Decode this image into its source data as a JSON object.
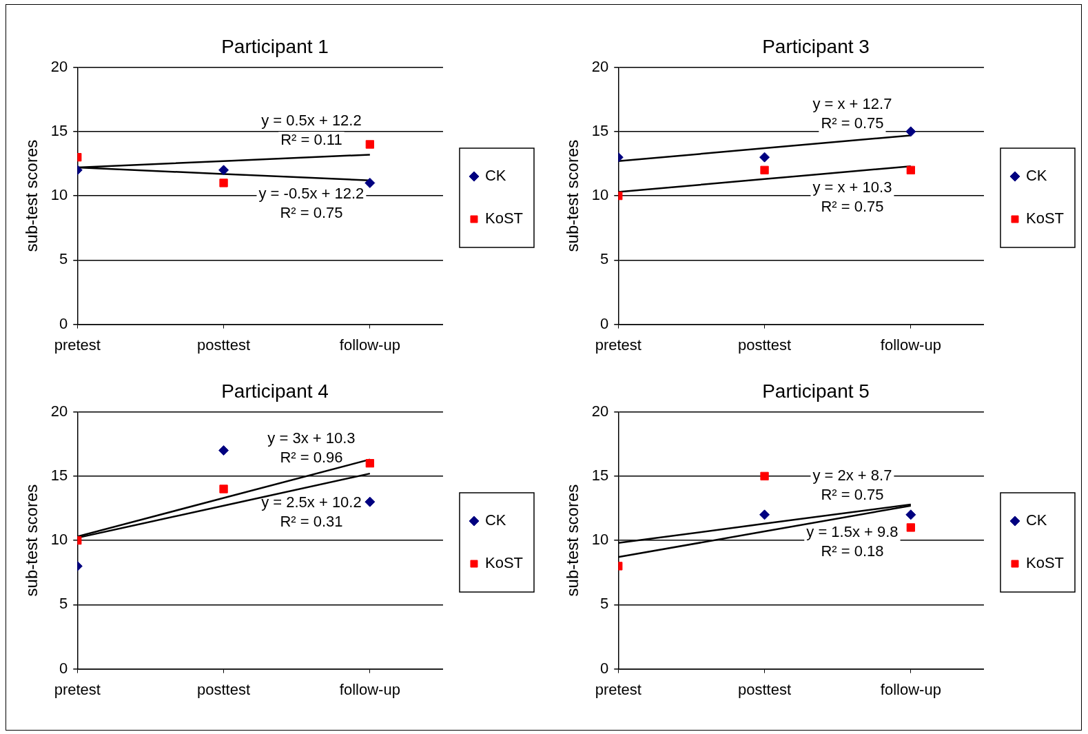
{
  "chart_data": [
    {
      "type": "scatter",
      "title": "Participant 1",
      "ylabel": "sub-test scores",
      "categories": [
        "pretest",
        "posttest",
        "follow-up"
      ],
      "ylim": [
        0,
        20
      ],
      "yticks": [
        0,
        5,
        10,
        15,
        20
      ],
      "grid": "y",
      "legend": "right",
      "series": [
        {
          "name": "CK",
          "marker": "diamond",
          "color": "#000080",
          "values": [
            12,
            12,
            11
          ]
        },
        {
          "name": "KoST",
          "marker": "square",
          "color": "#ff0000",
          "values": [
            13,
            11,
            14
          ]
        },
        {
          "type": "line",
          "marker": "none",
          "color": "#000000",
          "values": [
            12.2,
            12.7,
            13.2
          ]
        },
        {
          "type": "line",
          "marker": "none",
          "color": "#000000",
          "values": [
            12.2,
            11.7,
            11.2
          ]
        }
      ],
      "annotations": [
        "y = 0.5x + 12.2",
        "R² = 0.11",
        "y = -0.5x + 12.2",
        "R² = 0.75"
      ]
    },
    {
      "type": "scatter",
      "title": "Participant 3",
      "ylabel": "sub-test scores",
      "categories": [
        "pretest",
        "posttest",
        "follow-up"
      ],
      "ylim": [
        0,
        20
      ],
      "yticks": [
        0,
        5,
        10,
        15,
        20
      ],
      "grid": "y",
      "legend": "right",
      "series": [
        {
          "name": "CK",
          "marker": "diamond",
          "color": "#000080",
          "values": [
            13,
            13,
            15
          ]
        },
        {
          "name": "KoST",
          "marker": "square",
          "color": "#ff0000",
          "values": [
            10,
            12,
            12
          ]
        },
        {
          "type": "line",
          "marker": "none",
          "color": "#000000",
          "values": [
            12.7,
            13.7,
            14.7
          ]
        },
        {
          "type": "line",
          "marker": "none",
          "color": "#000000",
          "values": [
            10.3,
            11.3,
            12.3
          ]
        }
      ],
      "annotations": [
        "y = x + 12.7",
        "R² = 0.75",
        "y = x + 10.3",
        "R² = 0.75"
      ]
    },
    {
      "type": "scatter",
      "title": "Participant 4",
      "ylabel": "sub-test scores",
      "categories": [
        "pretest",
        "posttest",
        "follow-up"
      ],
      "ylim": [
        0,
        20
      ],
      "yticks": [
        0,
        5,
        10,
        15,
        20
      ],
      "grid": "y",
      "legend": "right",
      "series": [
        {
          "name": "CK",
          "marker": "diamond",
          "color": "#000080",
          "values": [
            8,
            17,
            13
          ]
        },
        {
          "name": "KoST",
          "marker": "square",
          "color": "#ff0000",
          "values": [
            10,
            14,
            16
          ]
        },
        {
          "type": "line",
          "marker": "none",
          "color": "#000000",
          "values": [
            10.3,
            13.3,
            16.3
          ]
        },
        {
          "type": "line",
          "marker": "none",
          "color": "#000000",
          "values": [
            10.2,
            12.7,
            15.2
          ]
        }
      ],
      "annotations": [
        "y = 3x + 10.3",
        "R² = 0.96",
        "y = 2.5x + 10.2",
        "R² = 0.31"
      ]
    },
    {
      "type": "scatter",
      "title": "Participant 5",
      "ylabel": "sub-test scores",
      "categories": [
        "pretest",
        "posttest",
        "follow-up"
      ],
      "ylim": [
        0,
        20
      ],
      "yticks": [
        0,
        5,
        10,
        15,
        20
      ],
      "grid": "y",
      "legend": "right",
      "series": [
        {
          "name": "CK",
          "marker": "diamond",
          "color": "#000080",
          "values": [
            null,
            12,
            12
          ]
        },
        {
          "name": "KoST",
          "marker": "square",
          "color": "#ff0000",
          "values": [
            8,
            15,
            11
          ]
        },
        {
          "type": "line",
          "marker": "none",
          "color": "#000000",
          "values": [
            8.7,
            10.7,
            12.7
          ]
        },
        {
          "type": "line",
          "marker": "none",
          "color": "#000000",
          "values": [
            9.8,
            11.3,
            12.8
          ]
        }
      ],
      "annotations": [
        "y = 2x + 8.7",
        "R² = 0.75",
        "y = 1.5x + 9.8",
        "R² = 0.18"
      ]
    }
  ]
}
